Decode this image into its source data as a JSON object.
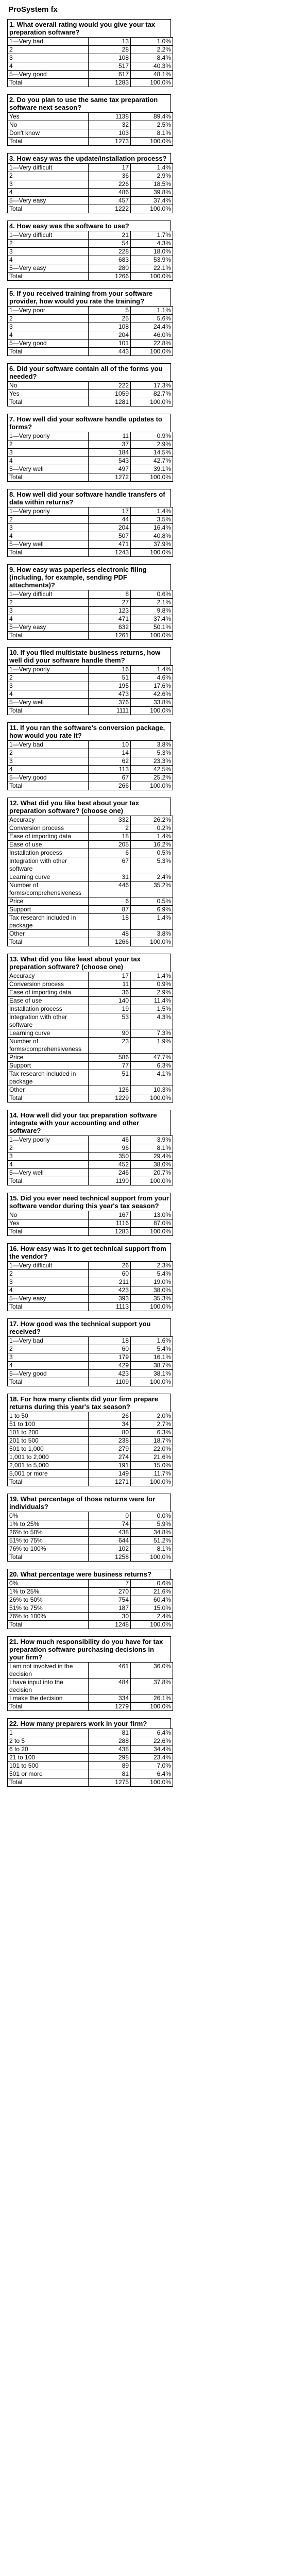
{
  "page_title": "ProSystem fx",
  "questions": [
    {
      "title": "1. What overall rating would you give your tax preparation software?",
      "rows": [
        [
          "1—Very bad",
          "13",
          "1.0%"
        ],
        [
          "2",
          "28",
          "2.2%"
        ],
        [
          "3",
          "108",
          "8.4%"
        ],
        [
          "4",
          "517",
          "40.3%"
        ],
        [
          "5—Very good",
          "617",
          "48.1%"
        ],
        [
          "Total",
          "1283",
          "100.0%"
        ]
      ]
    },
    {
      "title": "2. Do you plan to use the same tax preparation software next season?",
      "rows": [
        [
          "Yes",
          "1138",
          "89.4%"
        ],
        [
          "No",
          "32",
          "2.5%"
        ],
        [
          "Don't know",
          "103",
          "8.1%"
        ],
        [
          "Total",
          "1273",
          "100.0%"
        ]
      ]
    },
    {
      "title": "3. How easy was the update/installation process?",
      "rows": [
        [
          "1—Very difficult",
          "17",
          "1.4%"
        ],
        [
          "2",
          "36",
          "2.9%"
        ],
        [
          "3",
          "226",
          "18.5%"
        ],
        [
          "4",
          "486",
          "39.8%"
        ],
        [
          "5—Very easy",
          "457",
          "37.4%"
        ],
        [
          "Total",
          "1222",
          "100.0%"
        ]
      ]
    },
    {
      "title": "4. How easy was the software to use?",
      "rows": [
        [
          "1—Very difficult",
          "21",
          "1.7%"
        ],
        [
          "2",
          "54",
          "4.3%"
        ],
        [
          "3",
          "228",
          "18.0%"
        ],
        [
          "4",
          "683",
          "53.9%"
        ],
        [
          "5—Very easy",
          "280",
          "22.1%"
        ],
        [
          "Total",
          "1266",
          "100.0%"
        ]
      ]
    },
    {
      "title": "5. If you received training from your software provider, how would you rate the training?",
      "rows": [
        [
          "1—Very poor",
          "5",
          "1.1%"
        ],
        [
          "2",
          "25",
          "5.6%"
        ],
        [
          "3",
          "108",
          "24.4%"
        ],
        [
          "4",
          "204",
          "46.0%"
        ],
        [
          "5—Very good",
          "101",
          "22.8%"
        ],
        [
          "Total",
          "443",
          "100.0%"
        ]
      ]
    },
    {
      "title": "6. Did your software contain all of the forms you needed?",
      "rows": [
        [
          "No",
          "222",
          "17.3%"
        ],
        [
          "Yes",
          "1059",
          "82.7%"
        ],
        [
          "Total",
          "1281",
          "100.0%"
        ]
      ]
    },
    {
      "title": "7. How well did your software handle updates to forms?",
      "rows": [
        [
          "1—Very poorly",
          "11",
          "0.9%"
        ],
        [
          "2",
          "37",
          "2.9%"
        ],
        [
          "3",
          "184",
          "14.5%"
        ],
        [
          "4",
          "543",
          "42.7%"
        ],
        [
          "5—Very well",
          "497",
          "39.1%"
        ],
        [
          "Total",
          "1272",
          "100.0%"
        ]
      ]
    },
    {
      "title": "8. How well did your software handle transfers of data within returns?",
      "rows": [
        [
          "1—Very poorly",
          "17",
          "1.4%"
        ],
        [
          "2",
          "44",
          "3.5%"
        ],
        [
          "3",
          "204",
          "16.4%"
        ],
        [
          "4",
          "507",
          "40.8%"
        ],
        [
          "5—Very well",
          "471",
          "37.9%"
        ],
        [
          "Total",
          "1243",
          "100.0%"
        ]
      ]
    },
    {
      "title": "9. How easy was paperless electronic filing (including, for example, sending PDF attachments)?",
      "rows": [
        [
          "1—Very difficult",
          "8",
          "0.6%"
        ],
        [
          "2",
          "27",
          "2.1%"
        ],
        [
          "3",
          "123",
          "9.8%"
        ],
        [
          "4",
          "471",
          "37.4%"
        ],
        [
          "5—Very easy",
          "632",
          "50.1%"
        ],
        [
          "Total",
          "1261",
          "100.0%"
        ]
      ]
    },
    {
      "title": "10. If you filed multistate business returns, how well did your software handle them?",
      "rows": [
        [
          "1—Very poorly",
          "16",
          "1.4%"
        ],
        [
          "2",
          "51",
          "4.6%"
        ],
        [
          "3",
          "195",
          "17.6%"
        ],
        [
          "4",
          "473",
          "42.6%"
        ],
        [
          "5—Very well",
          "376",
          "33.8%"
        ],
        [
          "Total",
          "1111",
          "100.0%"
        ]
      ]
    },
    {
      "title": "11. If you ran the software's conversion package, how would you rate it?",
      "rows": [
        [
          "1—Very bad",
          "10",
          "3.8%"
        ],
        [
          "2",
          "14",
          "5.3%"
        ],
        [
          "3",
          "62",
          "23.3%"
        ],
        [
          "4",
          "113",
          "42.5%"
        ],
        [
          "5—Very good",
          "67",
          "25.2%"
        ],
        [
          "Total",
          "266",
          "100.0%"
        ]
      ]
    },
    {
      "title": "12. What did you like best about your tax preparation software? (choose one)",
      "rows": [
        [
          "Accuracy",
          "332",
          "26.2%"
        ],
        [
          "Conversion process",
          "2",
          "0.2%"
        ],
        [
          "Ease of importing data",
          "18",
          "1.4%"
        ],
        [
          "Ease of use",
          "205",
          "16.2%"
        ],
        [
          "Installation process",
          "6",
          "0.5%"
        ],
        [
          "Integration with other software",
          "67",
          "5.3%"
        ],
        [
          "Learning curve",
          "31",
          "2.4%"
        ],
        [
          "Number of forms/comprehensiveness",
          "446",
          "35.2%"
        ],
        [
          "Price",
          "6",
          "0.5%"
        ],
        [
          "Support",
          "87",
          "6.9%"
        ],
        [
          "Tax research included in package",
          "18",
          "1.4%"
        ],
        [
          "Other",
          "48",
          "3.8%"
        ],
        [
          "Total",
          "1266",
          "100.0%"
        ]
      ]
    },
    {
      "title": "13. What did you like least about your tax preparation software? (choose one)",
      "rows": [
        [
          "Accuracy",
          "17",
          "1.4%"
        ],
        [
          "Conversion process",
          "11",
          "0.9%"
        ],
        [
          "Ease of importing data",
          "36",
          "2.9%"
        ],
        [
          "Ease of use",
          "140",
          "11.4%"
        ],
        [
          "Installation process",
          "19",
          "1.5%"
        ],
        [
          "Integration with other software",
          "53",
          "4.3%"
        ],
        [
          "Learning curve",
          "90",
          "7.3%"
        ],
        [
          "Number of forms/comprehensiveness",
          "23",
          "1.9%"
        ],
        [
          "Price",
          "586",
          "47.7%"
        ],
        [
          "Support",
          "77",
          "6.3%"
        ],
        [
          "Tax research included in package",
          "51",
          "4.1%"
        ],
        [
          "Other",
          "126",
          "10.3%"
        ],
        [
          "Total",
          "1229",
          "100.0%"
        ]
      ]
    },
    {
      "title": "14. How well did your tax preparation software integrate with your accounting and other software?",
      "rows": [
        [
          "1—Very poorly",
          "46",
          "3.9%"
        ],
        [
          "2",
          "96",
          "8.1%"
        ],
        [
          "3",
          "350",
          "29.4%"
        ],
        [
          "4",
          "452",
          "38.0%"
        ],
        [
          "5—Very well",
          "246",
          "20.7%"
        ],
        [
          "Total",
          "1190",
          "100.0%"
        ]
      ]
    },
    {
      "title": "15. Did you ever need technical support from your software vendor during this year's tax season?",
      "rows": [
        [
          "No",
          "167",
          "13.0%"
        ],
        [
          "Yes",
          "1116",
          "87.0%"
        ],
        [
          "Total",
          "1283",
          "100.0%"
        ]
      ]
    },
    {
      "title": "16. How easy was it to get technical support from the vendor?",
      "rows": [
        [
          "1—Very difficult",
          "26",
          "2.3%"
        ],
        [
          "2",
          "60",
          "5.4%"
        ],
        [
          "3",
          "211",
          "19.0%"
        ],
        [
          "4",
          "423",
          "38.0%"
        ],
        [
          "5—Very easy",
          "393",
          "35.3%"
        ],
        [
          "Total",
          "1113",
          "100.0%"
        ]
      ]
    },
    {
      "title": "17. How good was the technical support you received?",
      "rows": [
        [
          "1—Very bad",
          "18",
          "1.6%"
        ],
        [
          "2",
          "60",
          "5.4%"
        ],
        [
          "3",
          "179",
          "16.1%"
        ],
        [
          "4",
          "429",
          "38.7%"
        ],
        [
          "5—Very good",
          "423",
          "38.1%"
        ],
        [
          "Total",
          "1109",
          "100.0%"
        ]
      ]
    },
    {
      "title": "18. For how many clients did your firm prepare returns during this year's tax season?",
      "rows": [
        [
          "1 to 50",
          "26",
          "2.0%"
        ],
        [
          "51 to 100",
          "34",
          "2.7%"
        ],
        [
          "101 to 200",
          "80",
          "6.3%"
        ],
        [
          "201 to 500",
          "238",
          "18.7%"
        ],
        [
          "501 to 1,000",
          "279",
          "22.0%"
        ],
        [
          "1,001 to 2,000",
          "274",
          "21.6%"
        ],
        [
          "2,001 to 5,000",
          "191",
          "15.0%"
        ],
        [
          "5,001 or more",
          "149",
          "11.7%"
        ],
        [
          "Total",
          "1271",
          "100.0%"
        ]
      ]
    },
    {
      "title": "19. What percentage of those returns were for individuals?",
      "rows": [
        [
          "0%",
          "0",
          "0.0%"
        ],
        [
          "1% to 25%",
          "74",
          "5.9%"
        ],
        [
          "26% to 50%",
          "438",
          "34.8%"
        ],
        [
          "51% to 75%",
          "644",
          "51.2%"
        ],
        [
          "76% to 100%",
          "102",
          "8.1%"
        ],
        [
          "Total",
          "1258",
          "100.0%"
        ]
      ]
    },
    {
      "title": "20. What percentage were business returns?",
      "rows": [
        [
          "0%",
          "7",
          "0.6%"
        ],
        [
          "1% to 25%",
          "270",
          "21.6%"
        ],
        [
          "26% to 50%",
          "754",
          "60.4%"
        ],
        [
          "51% to 75%",
          "187",
          "15.0%"
        ],
        [
          "76% to 100%",
          "30",
          "2.4%"
        ],
        [
          "Total",
          "1248",
          "100.0%"
        ]
      ]
    },
    {
      "title": "21. How much responsibility do you have for tax preparation software purchasing decisions in your firm?",
      "rows": [
        [
          "I am not involved in the decision",
          "461",
          "36.0%"
        ],
        [
          "I have input into the decision",
          "484",
          "37.8%"
        ],
        [
          "I make the decision",
          "334",
          "26.1%"
        ],
        [
          "Total",
          "1279",
          "100.0%"
        ]
      ]
    },
    {
      "title": "22. How many preparers work in your firm?",
      "rows": [
        [
          "1",
          "81",
          "6.4%"
        ],
        [
          "2 to 5",
          "288",
          "22.6%"
        ],
        [
          "6 to 20",
          "438",
          "34.4%"
        ],
        [
          "21 to 100",
          "298",
          "23.4%"
        ],
        [
          "101 to 500",
          "89",
          "7.0%"
        ],
        [
          "501 or more",
          "81",
          "6.4%"
        ],
        [
          "Total",
          "1275",
          "100.0%"
        ]
      ]
    }
  ]
}
